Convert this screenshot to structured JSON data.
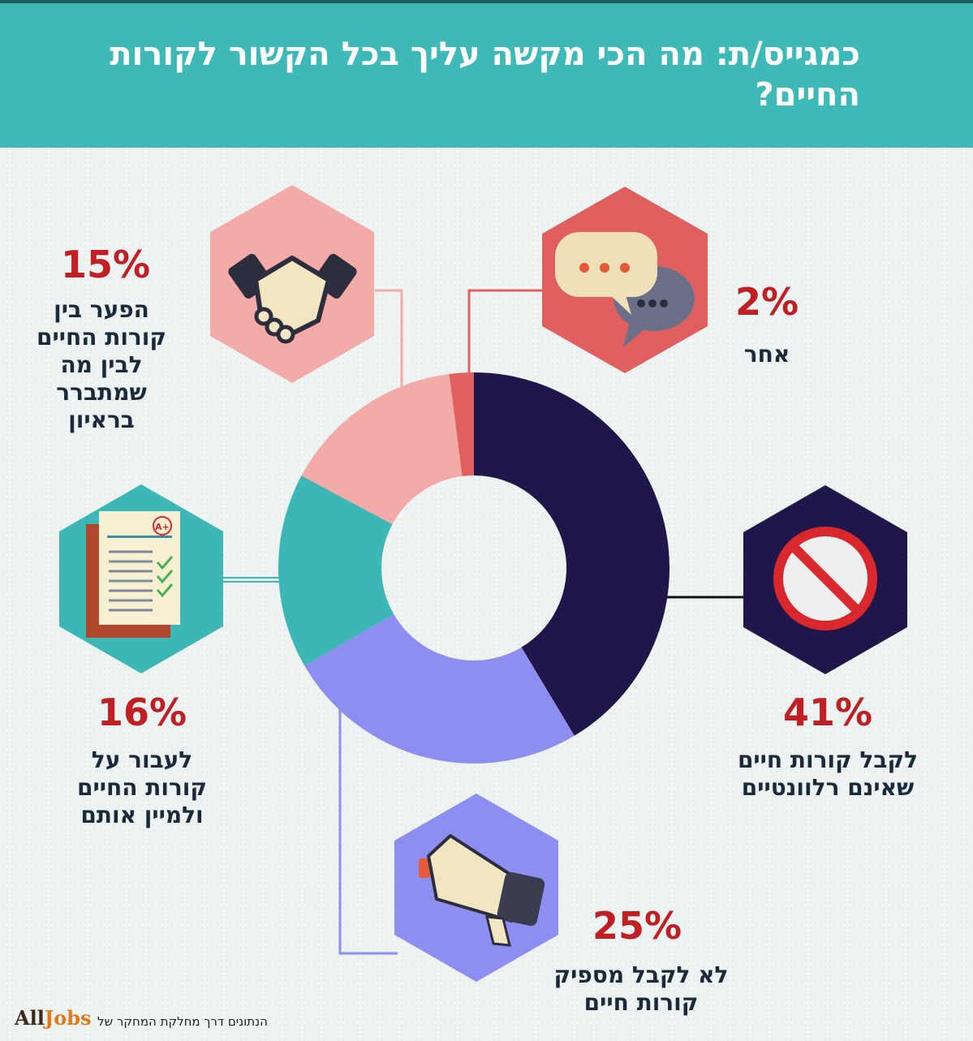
{
  "header": {
    "title": "כמגייס/ת: מה הכי מקשה עליך בכל הקשור לקורות החיים?"
  },
  "chart_data": {
    "type": "pie",
    "title": "כמגייס/ת: מה הכי מקשה עליך בכל הקשור לקורות החיים?",
    "slices": [
      {
        "label": "לקבל קורות חיים שאינם רלוונטיים",
        "value": 41,
        "display": "41%",
        "color": "#20164a",
        "icon": "no-entry-icon"
      },
      {
        "label": "לא לקבל מספיק קורות חיים",
        "value": 25,
        "display": "25%",
        "color": "#8d8ef0",
        "icon": "megaphone-icon"
      },
      {
        "label": "לעבור על קורות החיים ולמיין אותם",
        "value": 16,
        "display": "16%",
        "color": "#3db7b5",
        "icon": "graded-document-icon"
      },
      {
        "label": "הפער בין קורות החיים לבין מה שמתברר בראיון",
        "value": 15,
        "display": "15%",
        "color": "#f4aaa7",
        "icon": "handshake-icon"
      },
      {
        "label": "אחר",
        "value": 2,
        "display": "2%",
        "color": "#e0605f",
        "icon": "speech-bubbles-icon"
      }
    ]
  },
  "labels": {
    "s41": {
      "pct": "41%",
      "lines": [
        "לקבל קורות חיים",
        "שאינם רלוונטיים"
      ]
    },
    "s25": {
      "pct": "25%",
      "lines": [
        "לא לקבל מספיק",
        "קורות חיים"
      ]
    },
    "s16": {
      "pct": "16%",
      "lines": [
        "לעבור על",
        "קורות החיים",
        "ולמיין אותם"
      ]
    },
    "s15": {
      "pct": "15%",
      "lines": [
        "הפער בין",
        "קורות החיים",
        "לבין מה",
        "שמתברר",
        "בראיון"
      ]
    },
    "s2": {
      "pct": "2%",
      "lines": [
        "אחר"
      ]
    }
  },
  "footer": {
    "text": "הנתונים דרך מחלקת המחקר של",
    "logo_all": "All",
    "logo_jobs": "Jobs"
  },
  "colors": {
    "header": "#3fb8b8",
    "percent": "#c01f24",
    "label": "#1a2a3a"
  }
}
